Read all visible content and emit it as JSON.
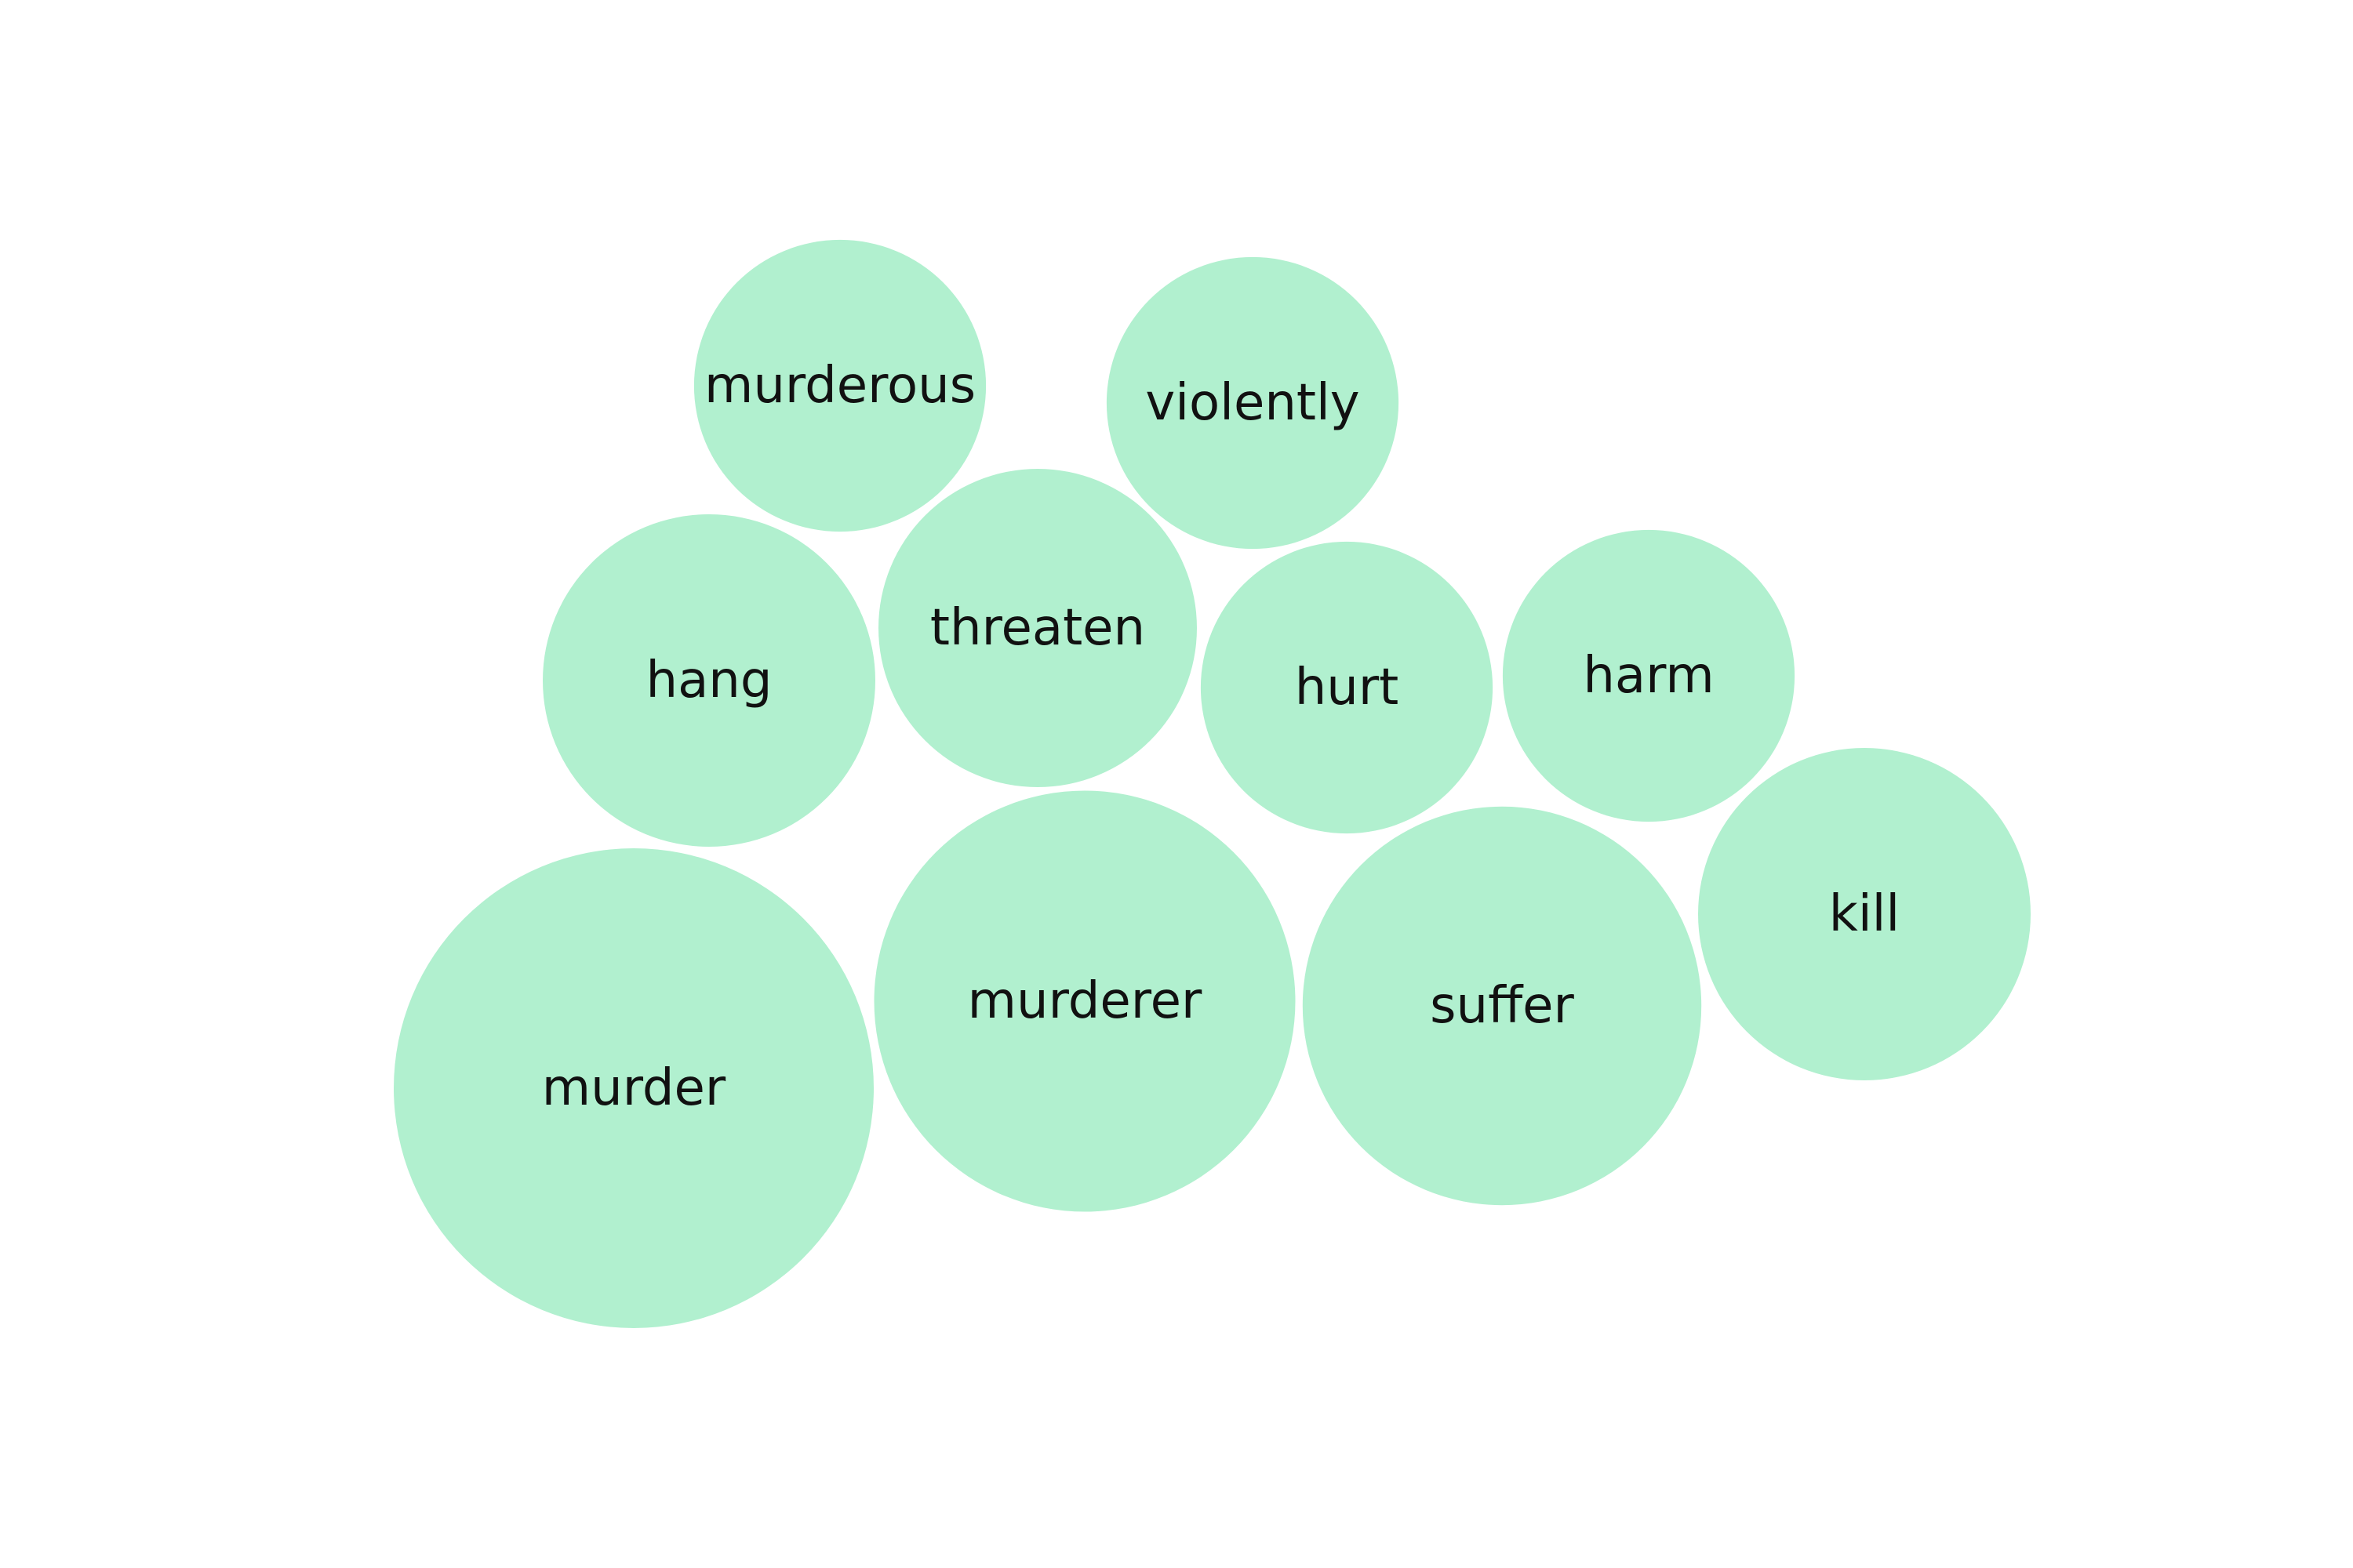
{
  "chart_data": {
    "type": "bubble",
    "color": "#b1f0cf",
    "label_color": "#111111",
    "bubbles": [
      {
        "label": "murder",
        "value": 100
      },
      {
        "label": "murderer",
        "value": 77
      },
      {
        "label": "suffer",
        "value": 69
      },
      {
        "label": "hang",
        "value": 48
      },
      {
        "label": "kill",
        "value": 48
      },
      {
        "label": "threaten",
        "value": 44
      },
      {
        "label": "murderous",
        "value": 37
      },
      {
        "label": "violently",
        "value": 37
      },
      {
        "label": "hurt",
        "value": 37
      },
      {
        "label": "harm",
        "value": 37
      }
    ]
  }
}
